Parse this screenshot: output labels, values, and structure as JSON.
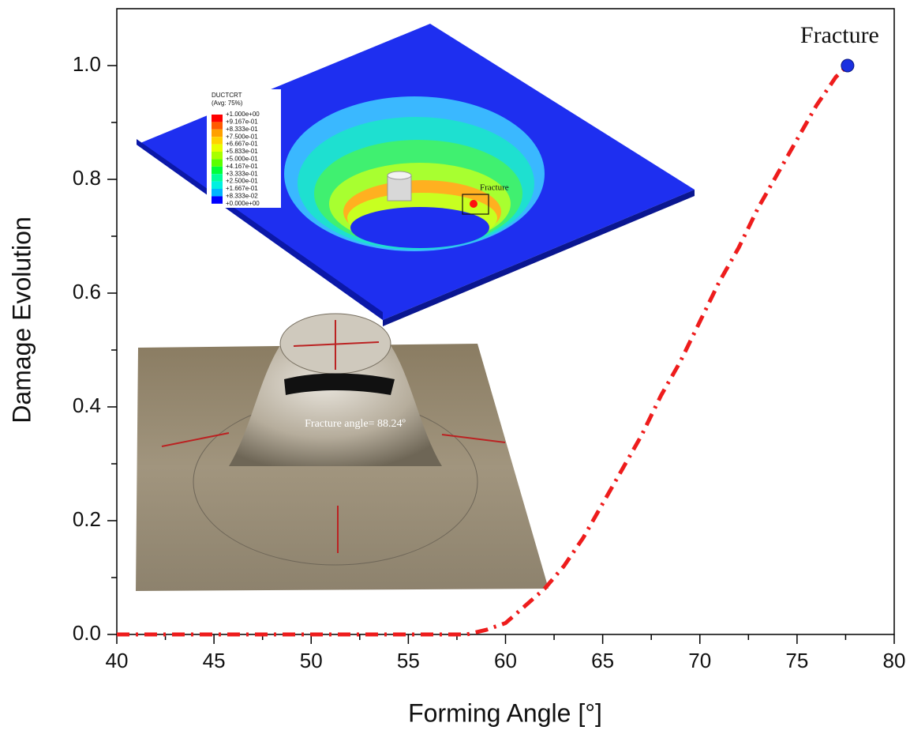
{
  "chart_data": {
    "type": "line",
    "x_label": "Forming Angle [°]",
    "y_label": "Damage Evolution",
    "x": [
      40,
      50,
      58,
      59,
      60,
      61,
      62,
      63,
      64,
      65,
      66,
      67,
      68,
      69,
      70,
      71,
      72,
      73,
      74,
      75,
      76,
      77,
      77.6
    ],
    "values": [
      0,
      0,
      0,
      0.008,
      0.02,
      0.05,
      0.08,
      0.12,
      0.17,
      0.23,
      0.29,
      0.35,
      0.42,
      0.48,
      0.55,
      0.62,
      0.68,
      0.75,
      0.81,
      0.87,
      0.93,
      0.98,
      1.0
    ],
    "color": "#ee1c1c",
    "line_style": "dashdot",
    "xlim": [
      40,
      80
    ],
    "ylim": [
      0,
      1.1
    ],
    "xticks": [
      40,
      45,
      50,
      55,
      60,
      65,
      70,
      75,
      80
    ],
    "yticks": [
      {
        "value": 0,
        "label": "0.0"
      },
      0.2,
      0.4,
      0.6,
      0.8,
      {
        "value": 1,
        "label": "1.0"
      }
    ],
    "xminorticks": [
      42.5,
      47.5,
      52.5,
      57.5,
      62.5,
      67.5,
      72.5,
      77.5
    ],
    "yminorticks": [
      0.1,
      0.3,
      0.5,
      0.7,
      0.9
    ],
    "fracture_point": {
      "x": 77.6,
      "y": 1.0,
      "label": "Fracture",
      "color": "#1a2fe0"
    }
  },
  "insets": {
    "fem": {
      "title": "DUCTCRT",
      "subtitle": "(Avg: 75%)",
      "levels": [
        "+1.000e+00",
        "+9.167e-01",
        "+8.333e-01",
        "+7.500e-01",
        "+6.667e-01",
        "+5.833e-01",
        "+5.000e-01",
        "+4.167e-01",
        "+3.333e-01",
        "+2.500e-01",
        "+1.667e-01",
        "+8.333e-02",
        "+0.000e+00"
      ],
      "colors": [
        "#ff0000",
        "#ff5a00",
        "#ffa000",
        "#ffd200",
        "#e8ff00",
        "#a8ff00",
        "#5cff00",
        "#00ff3a",
        "#00ff9a",
        "#00f0e0",
        "#00b4ff",
        "#0000ff"
      ],
      "fracture_label": "Fracture"
    },
    "photo": {
      "caption": "Fracture angle= 88.24º"
    }
  }
}
